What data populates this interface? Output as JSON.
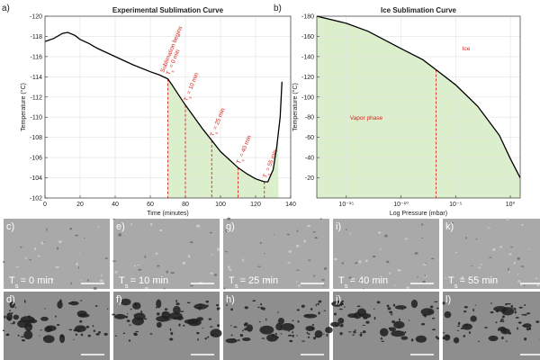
{
  "chart_data": [
    {
      "type": "line",
      "panel": "a)",
      "title": "Experimental Sublimation Curve",
      "xlabel": "Time (minutes)",
      "ylabel": "Temperature (°C)",
      "x": [
        0,
        5,
        10,
        13,
        17,
        20,
        25,
        30,
        40,
        50,
        60,
        65,
        70,
        72,
        75,
        80,
        85,
        90,
        95,
        100,
        105,
        110,
        115,
        120,
        125,
        127,
        130,
        132,
        134,
        135
      ],
      "values": [
        -117.5,
        -117.8,
        -118.3,
        -118.4,
        -118.1,
        -117.7,
        -117.3,
        -116.8,
        -116,
        -115.2,
        -114.5,
        -114.2,
        -113.8,
        -113.3,
        -112.5,
        -111.2,
        -110,
        -108.8,
        -107.7,
        -106.6,
        -105.8,
        -105,
        -104.4,
        -103.9,
        -103.6,
        -103.6,
        -104.8,
        -107,
        -110,
        -113.5
      ],
      "color": "#000000",
      "fill_color": "#dcefcc",
      "shade_x": [
        70,
        133
      ],
      "xlim": [
        0,
        140
      ],
      "ylim": [
        -102,
        -120
      ],
      "xticks": [
        0,
        20,
        40,
        60,
        80,
        100,
        120,
        140
      ],
      "yticks": [
        -120,
        -118,
        -116,
        -114,
        -112,
        -110,
        -108,
        -106,
        -104,
        -102
      ],
      "grid": true,
      "marker_color": "#d8261f",
      "marker_symbol": "T",
      "marker_subscript": "s",
      "markers": [
        {
          "x": 70,
          "note": "Sublimation begins",
          "text": "= 0 min"
        },
        {
          "x": 80,
          "text": "= 10 min"
        },
        {
          "x": 95,
          "text": "= 25 min"
        },
        {
          "x": 110,
          "text": "= 40 min"
        },
        {
          "x": 125,
          "text": "= 55 min"
        }
      ]
    },
    {
      "type": "line",
      "panel": "b)",
      "title": "Ice Sublimation Curve",
      "xlabel": "Log Pressure (mbar)",
      "ylabel": "Temperature (°C)",
      "xscale": "log",
      "x": [
        2e-18,
        1e-15,
        1e-13,
        1e-10,
        1e-08,
        1.6e-07,
        1e-05,
        0.001,
        0.1,
        1,
        8
      ],
      "values": [
        -180,
        -173,
        -165,
        -148,
        -137,
        -127,
        -112,
        -91,
        -62,
        -39,
        -20
      ],
      "color": "#000000",
      "fill_color": "#dcefcc",
      "xlim": [
        2e-18,
        8
      ],
      "ylim": [
        0,
        -180
      ],
      "xticks": [
        {
          "value": 1e-15,
          "label": "10⁻¹⁵"
        },
        {
          "value": 1e-10,
          "label": "10⁻¹⁰"
        },
        {
          "value": 1e-05,
          "label": "10⁻⁵"
        },
        {
          "value": 1,
          "label": "10⁰"
        }
      ],
      "yticks": [
        -180,
        -160,
        -140,
        -120,
        -100,
        -80,
        -60,
        -40,
        -20
      ],
      "grid": true,
      "marker_color": "#d8261f",
      "marker_x": [
        1.6e-07
      ],
      "annotations": [
        "Ice",
        "Vapor phase"
      ]
    }
  ],
  "panels": {
    "symbol": "T",
    "subscript": "s",
    "top": [
      {
        "label": "c)",
        "text": "= 0 min"
      },
      {
        "label": "e)",
        "text": "= 10 min"
      },
      {
        "label": "g)",
        "text": "= 25 min"
      },
      {
        "label": "i)",
        "text": "= 40 min"
      },
      {
        "label": "k)",
        "text": "= 55 min"
      }
    ],
    "bottom": [
      {
        "label": "d)"
      },
      {
        "label": "f)"
      },
      {
        "label": "h)"
      },
      {
        "label": "j)"
      },
      {
        "label": "l)"
      }
    ]
  }
}
